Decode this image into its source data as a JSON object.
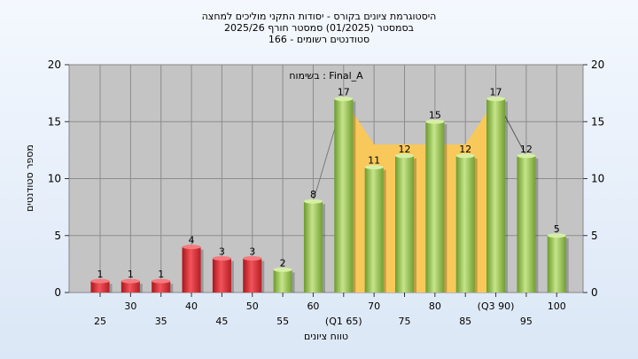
{
  "chart_data": {
    "type": "bar",
    "title_lines": [
      "היסטוגרמת ציונים בקורס - יסודות התקני מוליכים למחצה",
      "בסמסטר   (01/2025)   סמסטר חורף 2025/26",
      "סטודנטים רשומים - 166"
    ],
    "annotation": "בשימוח : Final_A",
    "ylabel": "מספר סטודנטים",
    "xlabel": "טווח ציונים",
    "ylim": [
      0,
      20
    ],
    "yticks": [
      0,
      5,
      10,
      15,
      20
    ],
    "grid": true,
    "categories": [
      "25",
      "30",
      "35",
      "40",
      "45",
      "50",
      "55",
      "60",
      "(Q1 65)",
      "70",
      "75",
      "80",
      "85",
      "(Q3 90)",
      "95",
      "100"
    ],
    "values": [
      1,
      1,
      1,
      4,
      3,
      3,
      2,
      8,
      17,
      11,
      12,
      15,
      12,
      17,
      12,
      5
    ],
    "bar_colors": [
      "red",
      "red",
      "red",
      "red",
      "red",
      "red",
      "green",
      "green",
      "green",
      "green",
      "green",
      "green",
      "green",
      "green",
      "green",
      "green"
    ],
    "area": {
      "x_from": "(Q1 65)",
      "x_to": "(Q3 90)",
      "values": [
        17,
        13,
        13,
        13,
        13,
        17
      ]
    },
    "colors": {
      "red_bar": "#e0333b",
      "green_bar": "#8fc24a",
      "area_fill": "#f9c85a",
      "plot_bg": "#c4c4c4"
    }
  }
}
